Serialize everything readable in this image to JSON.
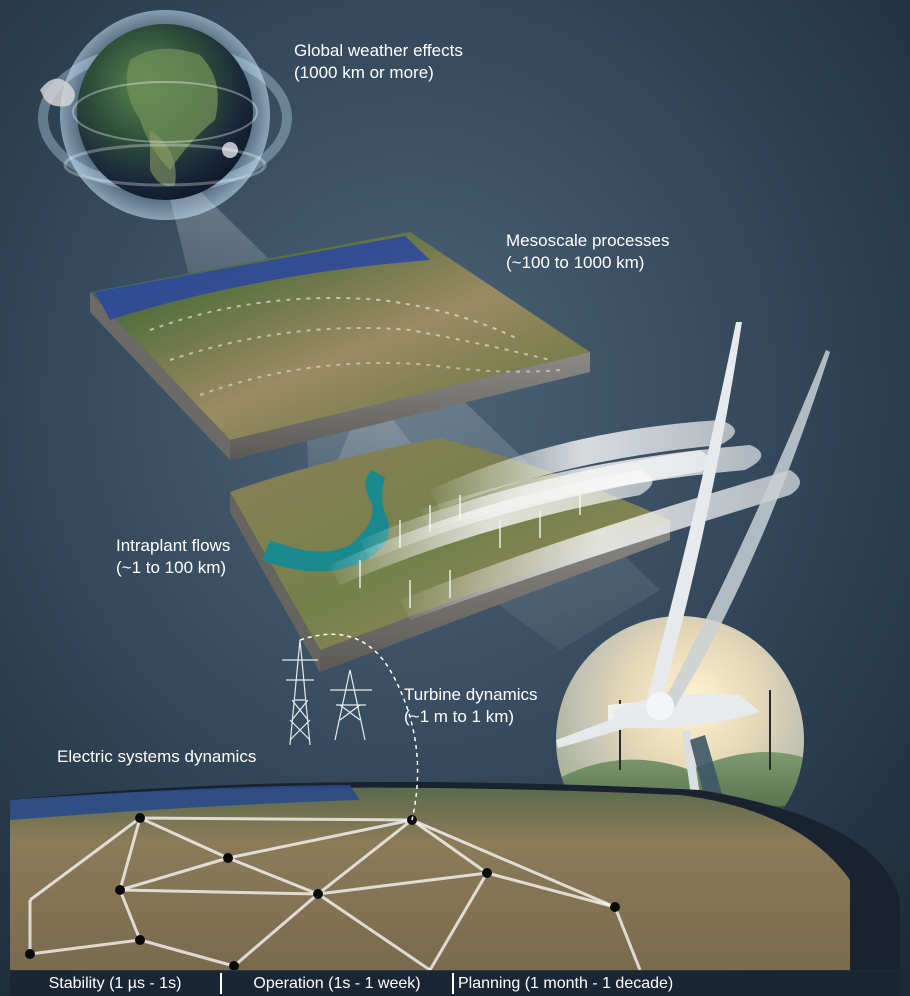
{
  "labels": {
    "global": {
      "line1": "Global weather effects",
      "line2": "(1000 km or more)"
    },
    "mesoscale": {
      "line1": "Mesoscale processes",
      "line2": "(~100 to 1000 km)"
    },
    "intraplant": {
      "line1": "Intraplant flows",
      "line2": "(~1 to 100 km)"
    },
    "turbine": {
      "line1": "Turbine dynamics",
      "line2": "(~1 m to 1 km)"
    },
    "electric": {
      "line1": "Electric systems dynamics"
    }
  },
  "timescales": [
    "Stability (1 µs - 1s)",
    "Operation (1s - 1 week)",
    "Planning (1 month - 1 decade)"
  ],
  "colors": {
    "background": "#2c3e4f",
    "water": "#1a8a8f",
    "ocean": "#233f8c",
    "terrain": "#8b7b5a",
    "text": "#ffffff"
  },
  "icons": [
    "globe-icon",
    "transmission-tower-icon",
    "wind-turbine-icon"
  ]
}
